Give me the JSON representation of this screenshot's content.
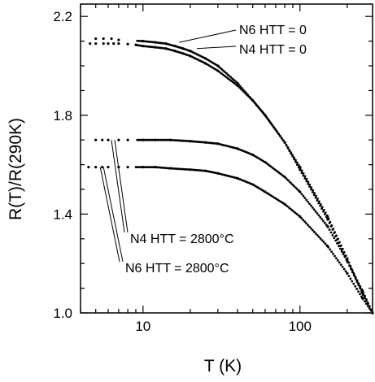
{
  "chart_data": {
    "type": "scatter",
    "title": "",
    "xlabel": "T (K)",
    "ylabel": "R(T)/R(290K)",
    "x_scale": "log",
    "xlim": [
      4,
      290
    ],
    "ylim": [
      1.0,
      2.25
    ],
    "x_ticks": [
      {
        "value": 10,
        "label": "10"
      },
      {
        "value": 100,
        "label": "100"
      }
    ],
    "y_ticks": [
      {
        "value": 1.0,
        "label": "1.0"
      },
      {
        "value": 1.4,
        "label": "1.4"
      },
      {
        "value": 1.8,
        "label": "1.8"
      },
      {
        "value": 2.2,
        "label": "2.2"
      }
    ],
    "grid": false,
    "series": [
      {
        "name": "N6 HTT = 0",
        "x": [
          5.0,
          5.6,
          6.3,
          7.0,
          10,
          12,
          14,
          16,
          18,
          20,
          25,
          30,
          40,
          50,
          60,
          80,
          100,
          150,
          200,
          250,
          290
        ],
        "y": [
          2.11,
          2.11,
          2.11,
          2.105,
          2.1,
          2.095,
          2.09,
          2.08,
          2.07,
          2.06,
          2.03,
          2.0,
          1.93,
          1.86,
          1.8,
          1.69,
          1.58,
          1.38,
          1.21,
          1.08,
          1.0
        ]
      },
      {
        "name": "N4 HTT = 0",
        "x": [
          4.6,
          5.0,
          5.6,
          6.0,
          6.5,
          7.0,
          8,
          9,
          10,
          12,
          14,
          16,
          18,
          20,
          25,
          30,
          40,
          50,
          60,
          80,
          100,
          150,
          200,
          250,
          290
        ],
        "y": [
          2.09,
          2.09,
          2.09,
          2.09,
          2.09,
          2.09,
          2.088,
          2.085,
          2.08,
          2.075,
          2.07,
          2.06,
          2.05,
          2.04,
          2.01,
          1.98,
          1.92,
          1.86,
          1.8,
          1.69,
          1.59,
          1.39,
          1.22,
          1.08,
          1.0
        ]
      },
      {
        "name": "N4 HTT = 2800°C",
        "x": [
          5.0,
          5.5,
          6.0,
          7.0,
          8,
          10,
          12,
          15,
          20,
          25,
          30,
          40,
          50,
          60,
          80,
          100,
          150,
          200,
          250,
          290
        ],
        "y": [
          1.7,
          1.7,
          1.7,
          1.7,
          1.7,
          1.7,
          1.7,
          1.7,
          1.695,
          1.69,
          1.685,
          1.665,
          1.64,
          1.61,
          1.55,
          1.49,
          1.35,
          1.21,
          1.09,
          1.0
        ]
      },
      {
        "name": "N6 HTT = 2800°C",
        "x": [
          4.5,
          5.0,
          5.5,
          6.0,
          7.0,
          8,
          10,
          12,
          15,
          20,
          25,
          30,
          40,
          50,
          60,
          80,
          100,
          150,
          200,
          250,
          290
        ],
        "y": [
          1.59,
          1.59,
          1.59,
          1.59,
          1.59,
          1.59,
          1.59,
          1.59,
          1.585,
          1.58,
          1.575,
          1.565,
          1.545,
          1.52,
          1.49,
          1.44,
          1.39,
          1.27,
          1.16,
          1.06,
          1.0
        ]
      }
    ],
    "annotations": [
      {
        "text": "N6 HTT = 0",
        "series": "N6 HTT = 0"
      },
      {
        "text": "N4 HTT = 0",
        "series": "N4 HTT = 0"
      },
      {
        "text": "N4 HTT =  2800°C",
        "series": "N4 HTT = 2800°C"
      },
      {
        "text": "N6 HTT =  2800°C",
        "series": "N6 HTT = 2800°C"
      }
    ]
  }
}
